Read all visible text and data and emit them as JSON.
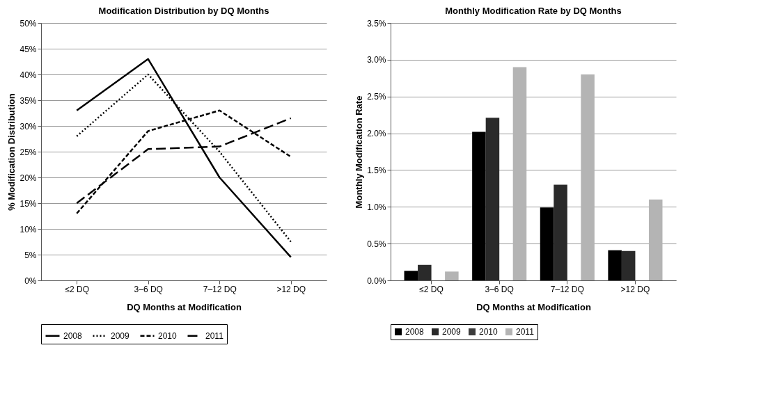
{
  "chart_data": [
    {
      "type": "line",
      "title": "Modification Distribution by DQ Months",
      "xlabel": "DQ Months at Modification",
      "ylabel": "% Modification Distribution",
      "categories": [
        "≤2 DQ",
        "3–6 DQ",
        "7–12 DQ",
        ">12 DQ"
      ],
      "series": [
        {
          "name": "2008",
          "color": "#000000",
          "line_style": "solid",
          "values": [
            33,
            43,
            20,
            4.5
          ]
        },
        {
          "name": "2009",
          "color": "#000000",
          "line_style": "dotted",
          "values": [
            28,
            40,
            25,
            7.5
          ]
        },
        {
          "name": "2010",
          "color": "#000000",
          "line_style": "dashed",
          "values": [
            13,
            29,
            33,
            24
          ]
        },
        {
          "name": "2011",
          "color": "#000000",
          "line_style": "dashed",
          "values": [
            15,
            25.5,
            26,
            31.5
          ]
        }
      ],
      "ylim": [
        0,
        50
      ],
      "yticks": [
        {
          "value": 0,
          "label": "0%"
        },
        {
          "value": 5,
          "label": "5%"
        },
        {
          "value": 10,
          "label": "10%"
        },
        {
          "value": 15,
          "label": "15%"
        },
        {
          "value": 20,
          "label": "20%"
        },
        {
          "value": 25,
          "label": "25%"
        },
        {
          "value": 30,
          "label": "30%"
        },
        {
          "value": 35,
          "label": "35%"
        },
        {
          "value": 40,
          "label": "40%"
        },
        {
          "value": 45,
          "label": "45%"
        },
        {
          "value": 50,
          "label": "50%"
        }
      ],
      "grid": "y",
      "legend": "bottom",
      "marker": "none"
    },
    {
      "type": "bar",
      "title": "Monthly Modification Rate by DQ Months",
      "xlabel": "DQ Months at Modification",
      "ylabel": "Monthly Modification Rate",
      "categories": [
        "≤2 DQ",
        "3–6 DQ",
        "7–12 DQ",
        ">12 DQ"
      ],
      "series": [
        {
          "name": "2008",
          "color": "#000000",
          "values": [
            0.13,
            2.02,
            0.99,
            0.41
          ]
        },
        {
          "name": "2009",
          "color": "#2a2a2a",
          "values": [
            0.21,
            2.21,
            1.3,
            0.4
          ]
        },
        {
          "name": "2010",
          "color": "#3c3c3c",
          "values": [
            null,
            null,
            null,
            null
          ]
        },
        {
          "name": "2011",
          "color": "#b4b4b4",
          "values": [
            0.12,
            2.9,
            2.8,
            1.1
          ]
        }
      ],
      "ylim": [
        0,
        3.5
      ],
      "yticks": [
        {
          "value": 0,
          "label": "0.0%"
        },
        {
          "value": 0.5,
          "label": "0.5%"
        },
        {
          "value": 1,
          "label": "1.0%"
        },
        {
          "value": 1.5,
          "label": "1.5%"
        },
        {
          "value": 2,
          "label": "2.0%"
        },
        {
          "value": 2.5,
          "label": "2.5%"
        },
        {
          "value": 3,
          "label": "3.0%"
        },
        {
          "value": 3.5,
          "label": "3.5%"
        }
      ],
      "grid": "y",
      "legend": "bottom"
    }
  ]
}
